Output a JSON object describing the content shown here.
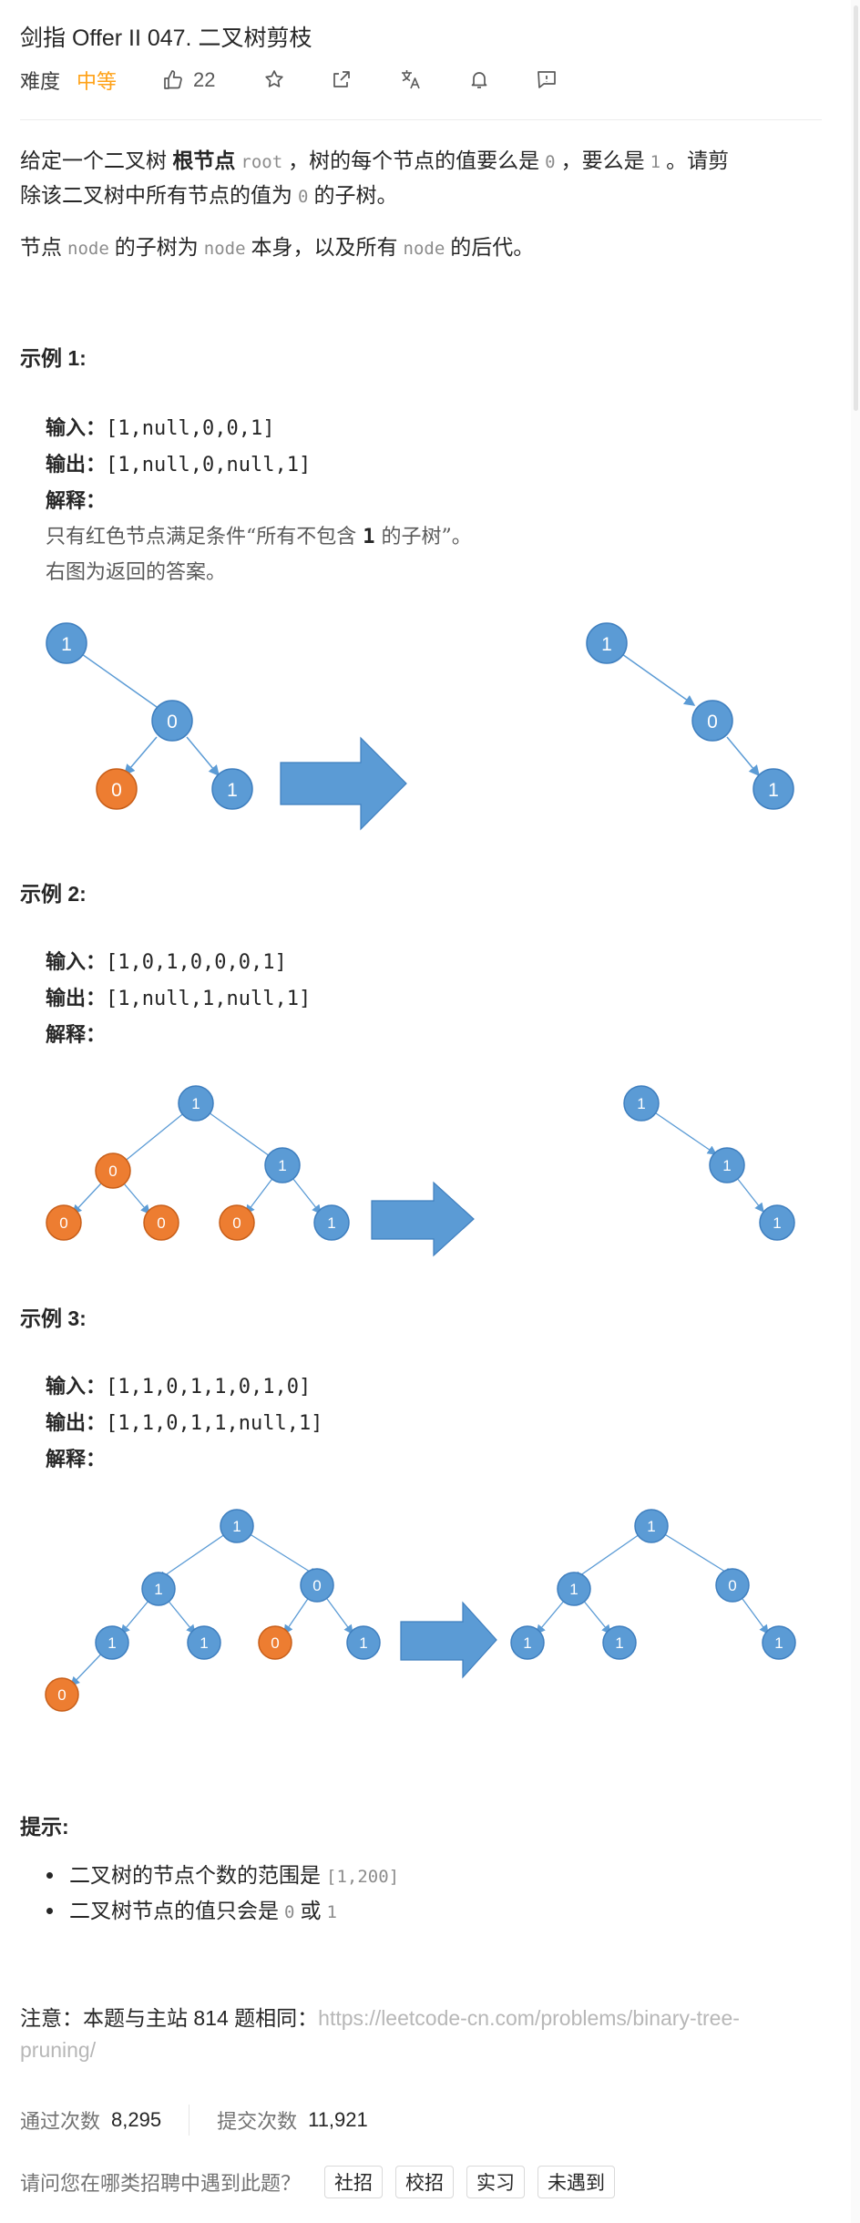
{
  "problem": {
    "title": "剑指 Offer II 047. 二叉树剪枝",
    "difficulty_label": "难度",
    "difficulty": "中等",
    "likes": "22",
    "accent": "#ffa116"
  },
  "toolbar": {
    "icons": [
      "thumbs-up-icon",
      "star-icon",
      "share-icon",
      "translate-icon",
      "bell-icon",
      "feedback-icon"
    ]
  },
  "description": {
    "p1_a": "给定一个二叉树 ",
    "p1_bold": "根节点",
    "p1_code1": "root",
    "p1_b": "，树的每个节点的值要么是",
    "p1_code2": "0",
    "p1_c": "，要么是",
    "p1_code3": "1",
    "p1_d": "。请剪",
    "p1_e": "除该二叉树中所有节点的值为",
    "p1_code4": "0",
    "p1_f": "的子树。",
    "p2_a": "节点",
    "p2_code1": "node",
    "p2_b": "的子树为",
    "p2_code2": "node",
    "p2_c": "本身，以及所有",
    "p2_code3": "node",
    "p2_d": "的后代。"
  },
  "examples": [
    {
      "heading": "示例 1:",
      "input_label": "输入：",
      "input": "[1,null,0,0,1]",
      "output_label": "输出：",
      "output": "[1,null,0,null,1]",
      "explain_label": "解释：",
      "note1_a": "只有红色节点满足条件“所有不包含 ",
      "note1_code": "1",
      "note1_b": " 的子树”。",
      "note2": "右图为返回的答案。"
    },
    {
      "heading": "示例 2:",
      "input_label": "输入：",
      "input": "[1,0,1,0,0,0,1]",
      "output_label": "输出：",
      "output": "[1,null,1,null,1]",
      "explain_label": "解释："
    },
    {
      "heading": "示例 3:",
      "input_label": "输入：",
      "input": "[1,1,0,1,1,0,1,0]",
      "output_label": "输出：",
      "output": "[1,1,0,1,1,null,1]",
      "explain_label": "解释："
    }
  ],
  "trees": {
    "colors": {
      "blue": "#5b9bd5",
      "orange": "#ed7d31",
      "edge": "#5b9bd5",
      "text": "#ffffff"
    },
    "node_values": {
      "ex1_left": [
        "1",
        "0",
        "0",
        "1"
      ],
      "ex1_right": [
        "1",
        "0",
        "1"
      ],
      "ex2_left": [
        "1",
        "0",
        "1",
        "0",
        "0",
        "0",
        "1"
      ],
      "ex2_right": [
        "1",
        "1",
        "1"
      ],
      "ex3_left": [
        "1",
        "1",
        "0",
        "1",
        "1",
        "0",
        "1",
        "0"
      ],
      "ex3_right": [
        "1",
        "1",
        "0",
        "1",
        "1",
        "1"
      ]
    }
  },
  "hints": {
    "heading": "提示:",
    "item1_a": "二叉树的节点个数的范围是",
    "item1_code": "[1,200]",
    "item2_a": "二叉树节点的值只会是",
    "item2_code1": "0",
    "item2_b": "或",
    "item2_code2": "1"
  },
  "note": {
    "prefix": "注意：本题与主站 814 题相同：",
    "link": "https://leetcode-cn.com/problems/binary-tree-pruning/"
  },
  "stats": {
    "accepted_label": "通过次数",
    "accepted": "8,295",
    "submitted_label": "提交次数",
    "submitted": "11,921"
  },
  "survey": {
    "question": "请问您在哪类招聘中遇到此题？",
    "options": [
      "社招",
      "校招",
      "实习",
      "未遇到"
    ]
  }
}
